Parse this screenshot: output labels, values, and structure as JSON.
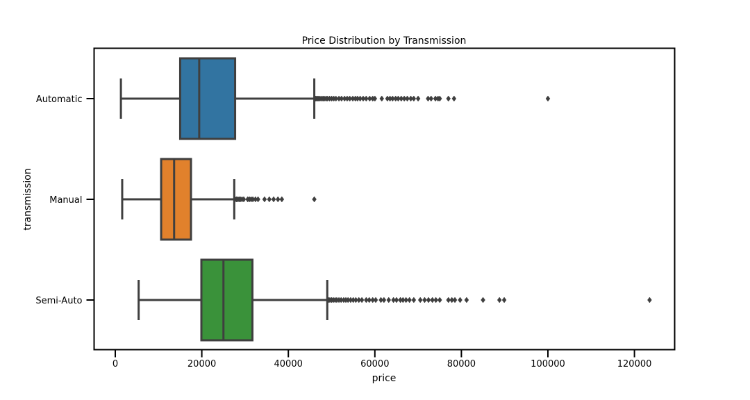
{
  "chart_data": {
    "type": "boxplot",
    "orientation": "horizontal",
    "title": "Price Distribution by Transmission",
    "xlabel": "price",
    "ylabel": "transmission",
    "xlim": [
      -5000,
      130000
    ],
    "xticks": [
      0,
      20000,
      40000,
      60000,
      80000,
      100000,
      120000
    ],
    "xtick_labels": [
      "0",
      "20000",
      "40000",
      "60000",
      "80000",
      "100000",
      "120000"
    ],
    "grid": false,
    "legend": "none",
    "categories": [
      "Automatic",
      "Manual",
      "Semi-Auto"
    ],
    "series": [
      {
        "category": "Automatic",
        "color": "#3274a1",
        "whisker_low": 1300,
        "q1": 15000,
        "median": 19400,
        "q3": 27700,
        "whisker_high": 46000,
        "outliers": [
          46300,
          46500,
          46800,
          47000,
          47300,
          47600,
          48000,
          48300,
          48700,
          49000,
          49500,
          50000,
          50500,
          51000,
          51700,
          52300,
          53000,
          53600,
          54200,
          54900,
          55500,
          56000,
          56600,
          57300,
          58000,
          58800,
          59500,
          60000,
          61600,
          62900,
          63500,
          64100,
          64800,
          65400,
          66100,
          66800,
          67500,
          68300,
          69000,
          70000,
          72300,
          73000,
          74000,
          74600,
          75000,
          77000,
          78300,
          100000
        ]
      },
      {
        "category": "Manual",
        "color": "#e1812c",
        "whisker_low": 1600,
        "q1": 10600,
        "median": 13600,
        "q3": 17500,
        "whisker_high": 27500,
        "outliers": [
          27700,
          28000,
          28300,
          28600,
          28900,
          29300,
          29700,
          30600,
          31000,
          31400,
          31800,
          32400,
          33000,
          34500,
          35600,
          36600,
          37600,
          38500,
          46000
        ]
      },
      {
        "category": "Semi-Auto",
        "color": "#3a923a",
        "whisker_low": 5400,
        "q1": 19900,
        "median": 25000,
        "q3": 31700,
        "whisker_high": 49000,
        "outliers": [
          49300,
          49600,
          50000,
          50400,
          50800,
          51200,
          51700,
          52200,
          52800,
          53300,
          53800,
          54400,
          55000,
          55600,
          56300,
          57000,
          58000,
          58700,
          59500,
          60200,
          61400,
          62100,
          63200,
          64300,
          65000,
          65900,
          66500,
          67200,
          68000,
          69000,
          70500,
          71500,
          72400,
          73300,
          74100,
          75000,
          77000,
          77800,
          78500,
          79700,
          81200,
          85000,
          88800,
          89900,
          123500
        ]
      }
    ]
  }
}
